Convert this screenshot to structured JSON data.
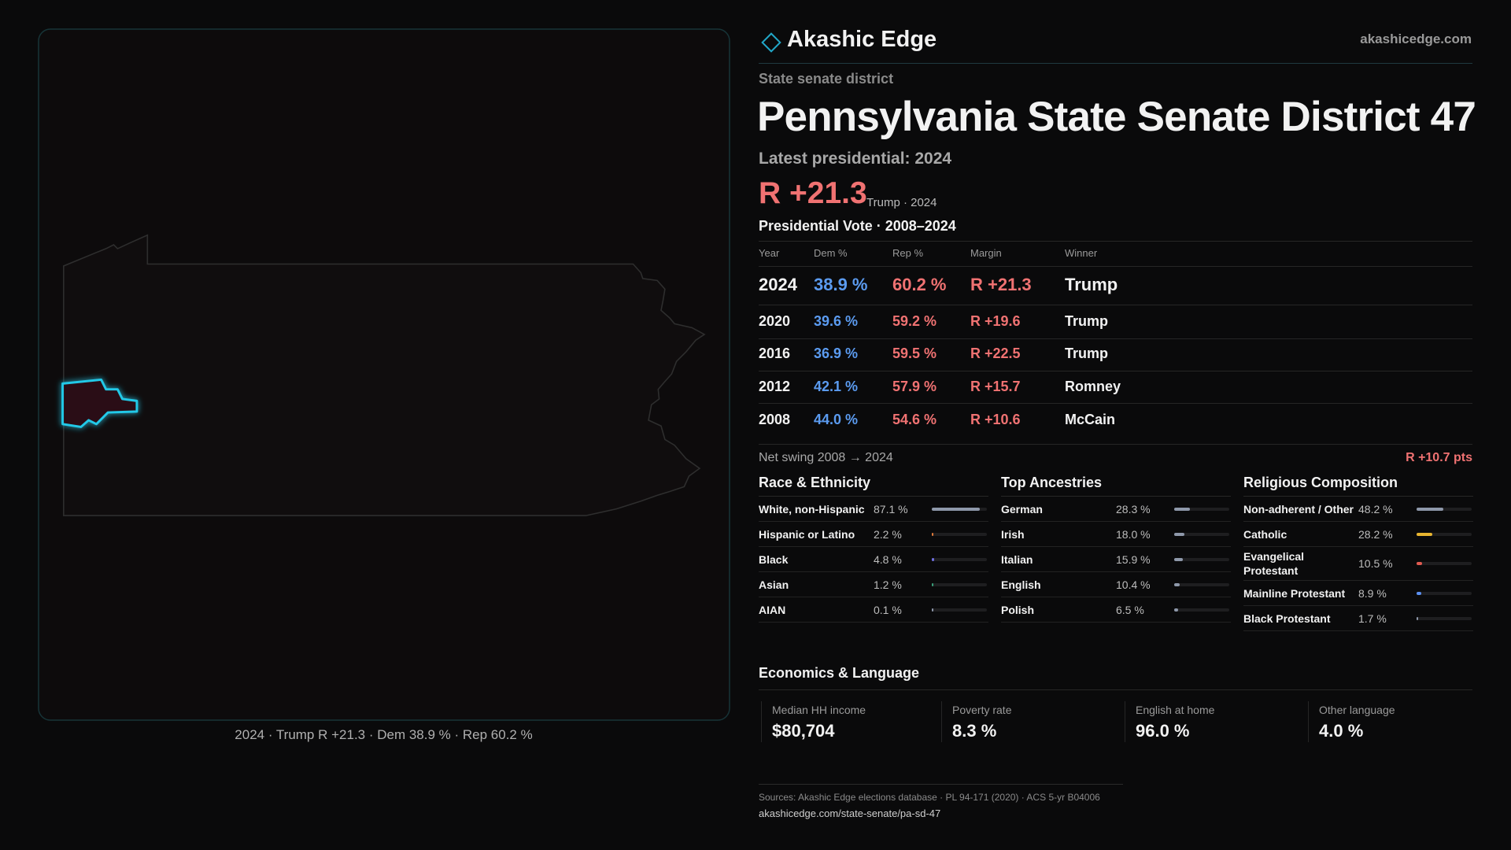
{
  "brand": {
    "name": "Akashic Edge",
    "site": "akashicedge.com"
  },
  "header": {
    "kicker": "State senate district",
    "title": "Pennsylvania State Senate District 47",
    "latest": "Latest presidential: 2024",
    "margin": "R +21.3",
    "margin_note": "Trump · 2024"
  },
  "map": {
    "caption": "2024 · Trump R +21.3 · Dem 38.9 % · Rep 60.2 %"
  },
  "vote_table": {
    "title": "Presidential Vote · 2008–2024",
    "columns": [
      "Year",
      "Dem %",
      "Rep %",
      "Margin",
      "Winner"
    ],
    "rows": [
      [
        "2024",
        "38.9 %",
        "60.2 %",
        "R +21.3",
        "Trump"
      ],
      [
        "2020",
        "39.6 %",
        "59.2 %",
        "R +19.6",
        "Trump"
      ],
      [
        "2016",
        "36.9 %",
        "59.5 %",
        "R +22.5",
        "Trump"
      ],
      [
        "2012",
        "42.1 %",
        "57.9 %",
        "R +15.7",
        "Romney"
      ],
      [
        "2008",
        "44.0 %",
        "54.6 %",
        "R +10.6",
        "McCain"
      ]
    ]
  },
  "swing": {
    "label": "Net swing 2008 → 2024",
    "value": "R +10.7 pts"
  },
  "race": {
    "title": "Race & Ethnicity",
    "items": [
      {
        "label": "White, non-Hispanic",
        "value": 87.1,
        "value_label": "87.1 %",
        "color": "#8e98aa"
      },
      {
        "label": "Hispanic or Latino",
        "value": 2.2,
        "value_label": "2.2 %",
        "color": "#e07a3a"
      },
      {
        "label": "Black",
        "value": 4.8,
        "value_label": "4.8 %",
        "color": "#6f6fe0"
      },
      {
        "label": "Asian",
        "value": 1.2,
        "value_label": "1.2 %",
        "color": "#3aa07a"
      },
      {
        "label": "AIAN",
        "value": 0.1,
        "value_label": "0.1 %",
        "color": "#8e98aa"
      }
    ]
  },
  "ancestry": {
    "title": "Top Ancestries",
    "items": [
      {
        "label": "German",
        "value": 28.3,
        "value_label": "28.3 %",
        "color": "#8e98aa"
      },
      {
        "label": "Irish",
        "value": 18.0,
        "value_label": "18.0 %",
        "color": "#8e98aa"
      },
      {
        "label": "Italian",
        "value": 15.9,
        "value_label": "15.9 %",
        "color": "#8e98aa"
      },
      {
        "label": "English",
        "value": 10.4,
        "value_label": "10.4 %",
        "color": "#8e98aa"
      },
      {
        "label": "Polish",
        "value": 6.5,
        "value_label": "6.5 %",
        "color": "#8e98aa"
      }
    ]
  },
  "religion": {
    "title": "Religious Composition",
    "items": [
      {
        "label": "Non-adherent / Other",
        "value": 48.2,
        "value_label": "48.2 %",
        "color": "#8e98aa"
      },
      {
        "label": "Catholic",
        "value": 28.2,
        "value_label": "28.2 %",
        "color": "#e8b530"
      },
      {
        "label": "Evangelical Protestant",
        "value": 10.5,
        "value_label": "10.5 %",
        "color": "#e05a50"
      },
      {
        "label": "Mainline Protestant",
        "value": 8.9,
        "value_label": "8.9 %",
        "color": "#5b8ff0"
      },
      {
        "label": "Black Protestant",
        "value": 1.7,
        "value_label": "1.7 %",
        "color": "#8e98aa"
      }
    ]
  },
  "economics": {
    "title": "Economics & Language",
    "items": [
      {
        "label": "Median HH income",
        "value": "$80,704"
      },
      {
        "label": "Poverty rate",
        "value": "8.3 %"
      },
      {
        "label": "English at home",
        "value": "96.0 %"
      },
      {
        "label": "Other language",
        "value": "4.0 %"
      }
    ]
  },
  "footer": {
    "sources": "Sources: Akashic Edge elections database · PL 94-171 (2020) · ACS 5-yr B04006",
    "url": "akashicedge.com/state-senate/pa-sd-47"
  }
}
